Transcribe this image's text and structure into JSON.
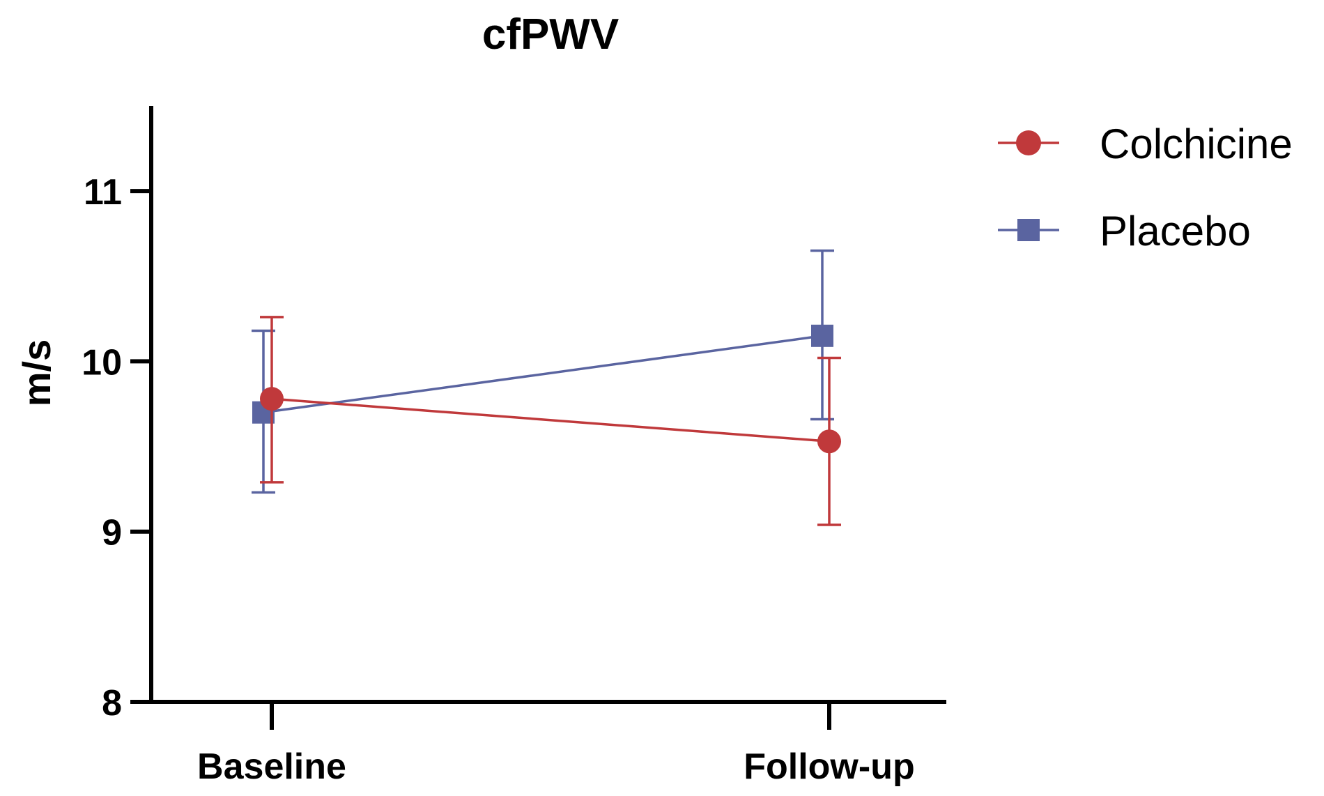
{
  "chart_data": {
    "type": "line",
    "title": "cfPWV",
    "xlabel": "",
    "ylabel": "m/s",
    "categories": [
      "Baseline",
      "Follow-up"
    ],
    "ylim": [
      8,
      11.5
    ],
    "yticks": [
      "8",
      "9",
      "10",
      "11"
    ],
    "grid": false,
    "legend_position": "top-right",
    "series": [
      {
        "name": "Colchicine",
        "color": "#c0393b",
        "marker": "circle",
        "values": [
          9.78,
          9.53
        ],
        "error_upper": [
          10.26,
          10.02
        ],
        "error_lower": [
          9.29,
          9.04
        ]
      },
      {
        "name": "Placebo",
        "color": "#5a64a0",
        "marker": "square",
        "values": [
          9.7,
          10.15
        ],
        "error_upper": [
          10.18,
          10.65
        ],
        "error_lower": [
          9.23,
          9.66
        ]
      }
    ]
  }
}
